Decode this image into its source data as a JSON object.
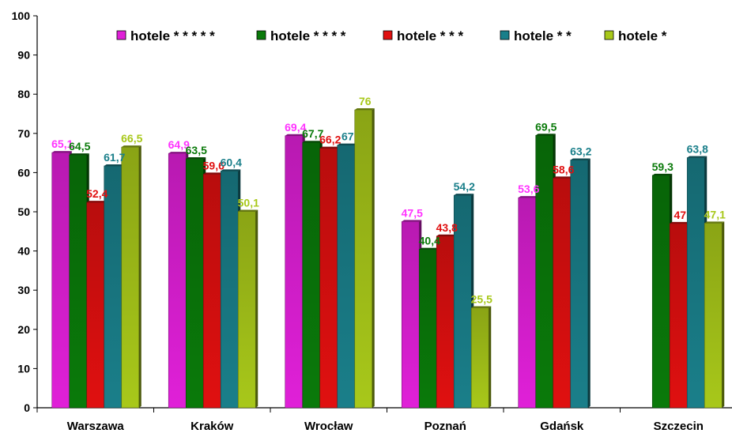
{
  "chart_data": {
    "type": "bar",
    "title": "",
    "xlabel": "",
    "ylabel": "",
    "ylim": [
      0,
      100
    ],
    "yticks": [
      0,
      10,
      20,
      30,
      40,
      50,
      60,
      70,
      80,
      90,
      100
    ],
    "grid": false,
    "legend_position": "top",
    "categories": [
      "Warszawa",
      "Kraków",
      "Wrocław",
      "Poznań",
      "Gdańsk",
      "Szczecin"
    ],
    "series": [
      {
        "name": "hotele * * * * *",
        "color": "#e020d8",
        "label_color": "#ff33ff",
        "values": [
          65.1,
          64.9,
          69.4,
          47.5,
          53.6,
          null
        ],
        "labels": [
          "65,1",
          "64,9",
          "69,4",
          "47,5",
          "53,6",
          ""
        ]
      },
      {
        "name": "hotele * * * *",
        "color": "#0a7a0a",
        "label_color": "#0a7a0a",
        "values": [
          64.5,
          63.5,
          67.7,
          40.4,
          69.5,
          59.3
        ],
        "labels": [
          "64,5",
          "63,5",
          "67,7",
          "40,4",
          "69,5",
          "59,3"
        ]
      },
      {
        "name": "hotele * * *",
        "color": "#e01010",
        "label_color": "#e01010",
        "values": [
          52.4,
          59.6,
          66.2,
          43.8,
          58.6,
          47
        ],
        "labels": [
          "52,4",
          "59,6",
          "66,2",
          "43,8",
          "58,6",
          "47"
        ]
      },
      {
        "name": "hotele * *",
        "color": "#1a7f8a",
        "label_color": "#1a7f8a",
        "values": [
          61.7,
          60.4,
          67,
          54.2,
          63.2,
          63.8
        ],
        "labels": [
          "61,7",
          "60,4",
          "67",
          "54,2",
          "63,2",
          "63,8"
        ]
      },
      {
        "name": "hotele *",
        "color": "#a8c81a",
        "label_color": "#a8c81a",
        "values": [
          66.5,
          50.1,
          76,
          25.5,
          null,
          47.1
        ],
        "labels": [
          "66,5",
          "50,1",
          "76",
          "25,5",
          "",
          "47,1"
        ]
      }
    ]
  }
}
